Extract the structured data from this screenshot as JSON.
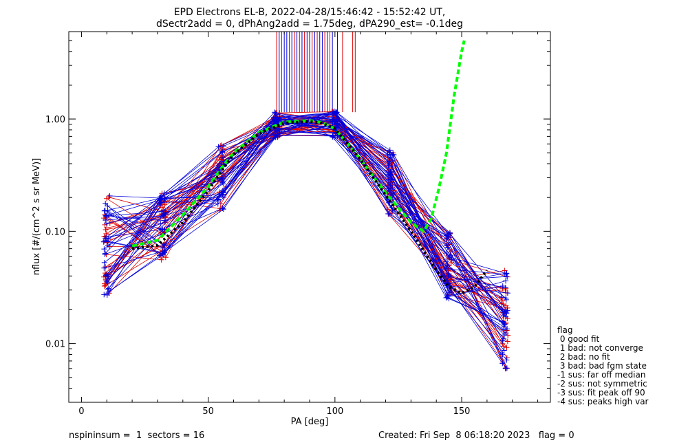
{
  "chart_data": {
    "type": "line",
    "title": "EPD Electrons EL-B, 2022-04-28/15:46:42 - 15:52:42 UT,",
    "subtitle": "dSectr2add = 0, dPhAng2add = 1.75deg, dPA290_est=  -0.1deg",
    "xlabel": "PA [deg]",
    "ylabel": "nflux [#/(cm^2 s sr MeV)]",
    "xlim": [
      -5,
      185
    ],
    "ylim": [
      0.003,
      6.0
    ],
    "yscale": "log",
    "x_ticks": [
      0,
      50,
      100,
      150
    ],
    "x_tick_labels": [
      "0",
      "50",
      "100",
      "150"
    ],
    "y_ticks": [
      0.01,
      0.1,
      1.0
    ],
    "y_tick_labels": [
      "0.01",
      "0.10",
      "1.00"
    ],
    "pa_bins": [
      10,
      32,
      55,
      77,
      100,
      122,
      145,
      167
    ],
    "red_spike_x": [
      77,
      79,
      82,
      84,
      86,
      88,
      91,
      93,
      96,
      98,
      103,
      107,
      108
    ],
    "blue_spike_x": [
      78,
      80,
      81,
      83,
      85,
      87,
      89,
      90,
      92,
      94,
      95,
      97,
      99,
      101
    ],
    "series": [
      {
        "name": "fit-green",
        "color": "#00ff00",
        "style": "dashed",
        "x": [
          20,
          30,
          40,
          50,
          55,
          60,
          70,
          80,
          90,
          95,
          100,
          105,
          110,
          120,
          130,
          135,
          138,
          141,
          144,
          147,
          150,
          151
        ],
        "values": [
          0.074,
          0.083,
          0.14,
          0.25,
          0.36,
          0.5,
          0.76,
          0.94,
          0.97,
          0.93,
          0.82,
          0.6,
          0.44,
          0.22,
          0.12,
          0.1,
          0.13,
          0.24,
          0.5,
          1.6,
          4.0,
          5.0
        ]
      },
      {
        "name": "fit-black",
        "color": "#000000",
        "style": "dotted",
        "x": [
          20,
          30,
          40,
          50,
          55,
          60,
          70,
          80,
          90,
          95,
          100,
          105,
          110,
          120,
          130,
          140,
          145,
          150,
          155,
          160
        ],
        "values": [
          0.07,
          0.075,
          0.12,
          0.23,
          0.34,
          0.48,
          0.74,
          0.92,
          0.95,
          0.92,
          0.82,
          0.6,
          0.44,
          0.21,
          0.1,
          0.045,
          0.032,
          0.028,
          0.032,
          0.045
        ]
      }
    ],
    "legend": {
      "title": "flag",
      "entries": [
        " 0 good fit",
        " 1 bad: not converge",
        " 2 bad: no fit",
        " 3 bad: bad fgm state",
        "-1 sus: far off median",
        "-2 sus: not symmetric",
        "-3 sus: fit peak off 90",
        "-4 sus: peaks high var"
      ],
      "placement": "right-bottom"
    }
  },
  "footer": {
    "left": "nspininsum =  1  sectors = 16",
    "right": "Created: Fri Sep  8 06:18:20 2023   flag = 0"
  },
  "colors": {
    "red": "#dd0000",
    "blue": "#0000dd",
    "fit_green": "#00ff00",
    "fit_black": "#000000"
  }
}
